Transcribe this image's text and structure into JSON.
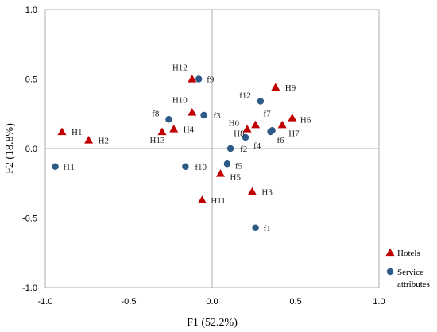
{
  "chart_data": {
    "type": "scatter",
    "xlabel": "F1 (52.2%)",
    "ylabel": "F2 (18.8%)",
    "xlim": [
      -1.0,
      1.0
    ],
    "ylim": [
      -1.0,
      1.0
    ],
    "x_ticks": [
      "-1.0",
      "-0.5",
      "0.0",
      "0.5",
      "1.0"
    ],
    "y_ticks": [
      "1.0",
      "0.5",
      "0.0",
      "-0.5",
      "-1.0"
    ],
    "grid": false,
    "legend_position": "bottom-right",
    "series": [
      {
        "name": "Hotels",
        "marker": "triangle",
        "color": "#c00000",
        "points": [
          {
            "label": "H1",
            "x": -0.9,
            "y": 0.12
          },
          {
            "label": "H2",
            "x": -0.74,
            "y": 0.06
          },
          {
            "label": "H3",
            "x": 0.24,
            "y": -0.31
          },
          {
            "label": "H4",
            "x": -0.23,
            "y": 0.14
          },
          {
            "label": "H5",
            "x": 0.05,
            "y": -0.18
          },
          {
            "label": "H6",
            "x": 0.48,
            "y": 0.22
          },
          {
            "label": "H7",
            "x": 0.42,
            "y": 0.17
          },
          {
            "label": "H8",
            "x": 0.26,
            "y": 0.17
          },
          {
            "label": "H9",
            "x": 0.38,
            "y": 0.44
          },
          {
            "label": "H10",
            "x": -0.12,
            "y": 0.26
          },
          {
            "label": "H11",
            "x": -0.06,
            "y": -0.37
          },
          {
            "label": "H12",
            "x": -0.12,
            "y": 0.5
          },
          {
            "label": "H13",
            "x": -0.3,
            "y": 0.12
          },
          {
            "label": "H0",
            "x": 0.21,
            "y": 0.14
          }
        ]
      },
      {
        "name": "Service attributes",
        "legend_lines": [
          "Service",
          "attributes"
        ],
        "marker": "circle",
        "color": "#2e5a88",
        "points": [
          {
            "label": "f1",
            "x": 0.26,
            "y": -0.57
          },
          {
            "label": "f2",
            "x": 0.11,
            "y": 0.0
          },
          {
            "label": "f3",
            "x": -0.05,
            "y": 0.24
          },
          {
            "label": "f4",
            "x": 0.2,
            "y": 0.08
          },
          {
            "label": "f5",
            "x": 0.09,
            "y": -0.11
          },
          {
            "label": "f6",
            "x": 0.35,
            "y": 0.12
          },
          {
            "label": "f7",
            "x": 0.36,
            "y": 0.13
          },
          {
            "label": "f8",
            "x": -0.26,
            "y": 0.21
          },
          {
            "label": "f9",
            "x": -0.08,
            "y": 0.5
          },
          {
            "label": "f10",
            "x": -0.16,
            "y": -0.13
          },
          {
            "label": "f11",
            "x": -0.94,
            "y": -0.13
          },
          {
            "label": "f12",
            "x": 0.29,
            "y": 0.34
          }
        ]
      }
    ]
  }
}
